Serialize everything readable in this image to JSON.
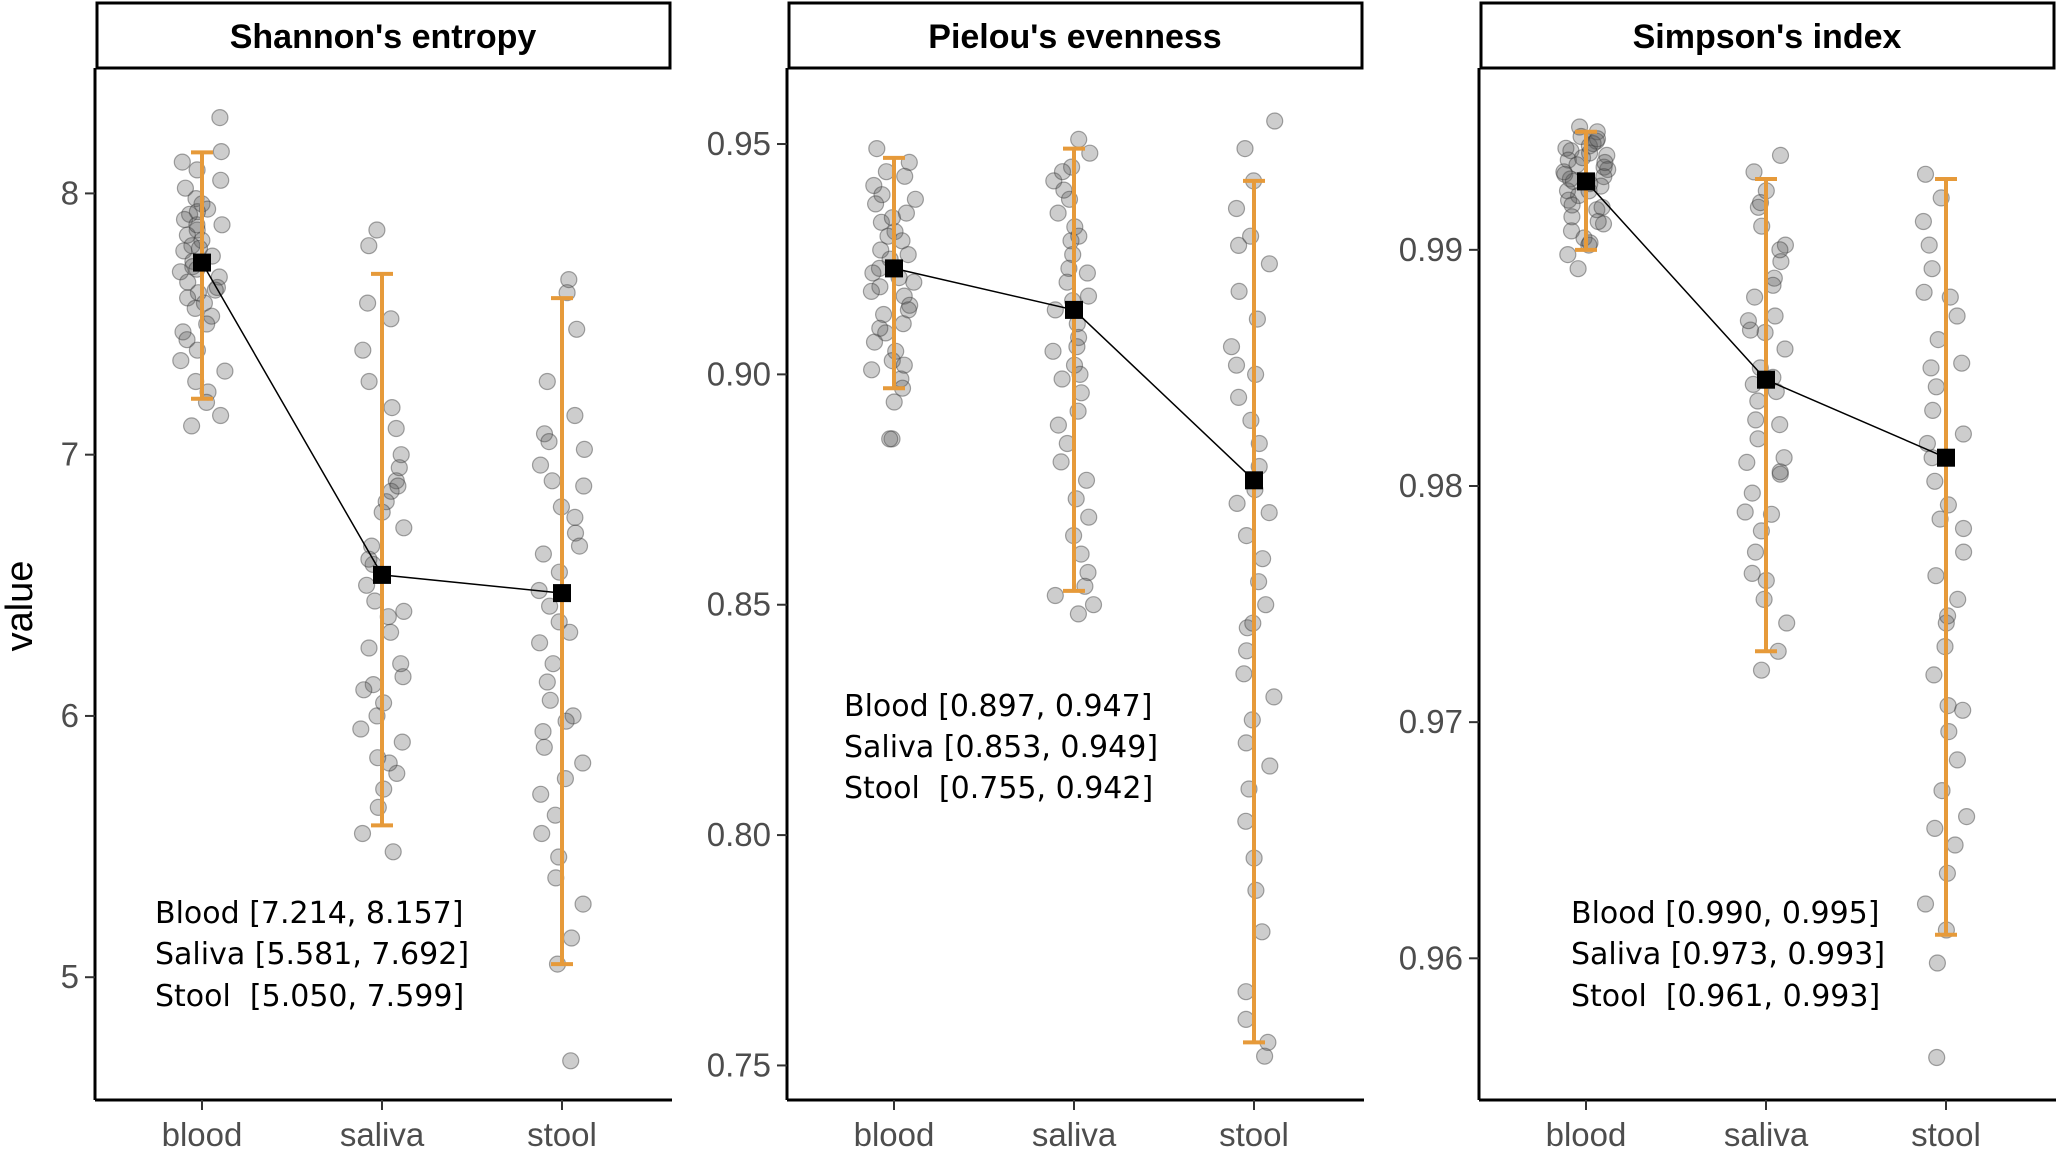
{
  "chart_data": [
    {
      "type": "scatter",
      "title": "Shannon's entropy",
      "ylabel": "value",
      "categories": [
        "blood",
        "saliva",
        "stool"
      ],
      "ylim": [
        4.53,
        8.48
      ],
      "yticks": [
        5,
        6,
        7,
        8
      ],
      "ytick_labels": [
        "5",
        "6",
        "7",
        "8"
      ],
      "mean": [
        7.735,
        6.54,
        6.47
      ],
      "interval_low": [
        7.214,
        5.581,
        5.05
      ],
      "interval_high": [
        8.157,
        7.692,
        7.599
      ],
      "interval_labels": [
        "Blood [7.214, 8.157]",
        "Saliva [5.581, 7.692]",
        "Stool  [5.050, 7.599]"
      ],
      "points": [
        [
          8.29,
          8.16,
          8.12,
          8.09,
          8.05,
          8.02,
          7.98,
          7.96,
          7.94,
          7.92,
          7.9,
          7.88,
          7.86,
          7.84,
          7.82,
          7.8,
          7.78,
          7.76,
          7.74,
          7.72,
          7.7,
          7.68,
          7.66,
          7.64,
          7.62,
          7.6,
          7.58,
          7.56,
          7.53,
          7.5,
          7.47,
          7.44,
          7.4,
          7.36,
          7.32,
          7.28,
          7.24,
          7.2,
          7.15,
          7.11,
          7.88,
          7.79,
          7.71,
          7.63,
          7.93
        ],
        [
          7.86,
          7.8,
          7.58,
          7.52,
          7.4,
          7.28,
          7.18,
          7.1,
          7.0,
          6.95,
          6.9,
          6.86,
          6.82,
          6.78,
          6.72,
          6.65,
          6.58,
          6.5,
          6.44,
          6.38,
          6.32,
          6.26,
          6.2,
          6.15,
          6.12,
          6.05,
          6.0,
          5.95,
          5.9,
          5.84,
          5.78,
          5.72,
          5.65,
          5.55,
          5.48,
          6.88,
          6.6,
          6.4,
          6.1,
          5.82
        ],
        [
          7.67,
          7.62,
          7.48,
          7.28,
          7.15,
          7.08,
          7.02,
          6.96,
          6.88,
          6.8,
          6.76,
          6.7,
          6.62,
          6.55,
          6.48,
          6.42,
          6.36,
          6.28,
          6.2,
          6.13,
          6.06,
          6.0,
          5.94,
          5.88,
          5.82,
          5.76,
          5.7,
          5.62,
          5.55,
          5.46,
          5.38,
          5.28,
          5.15,
          5.05,
          4.68,
          6.9,
          6.65,
          6.32,
          5.98,
          7.05
        ]
      ]
    },
    {
      "type": "scatter",
      "title": "Pielou's evenness",
      "ylabel": "",
      "categories": [
        "blood",
        "saliva",
        "stool"
      ],
      "ylim": [
        0.7425,
        0.9665
      ],
      "yticks": [
        0.75,
        0.8,
        0.85,
        0.9,
        0.95
      ],
      "ytick_labels": [
        "0.75",
        "0.80",
        "0.85",
        "0.90",
        "0.95"
      ],
      "mean": [
        0.923,
        0.914,
        0.877
      ],
      "interval_low": [
        0.897,
        0.853,
        0.755
      ],
      "interval_high": [
        0.947,
        0.949,
        0.942
      ],
      "interval_labels": [
        "Blood [0.897, 0.947]",
        "Saliva [0.853, 0.949]",
        "Stool  [0.755, 0.942]"
      ],
      "points": [
        [
          0.949,
          0.946,
          0.943,
          0.941,
          0.939,
          0.937,
          0.935,
          0.933,
          0.931,
          0.929,
          0.927,
          0.925,
          0.923,
          0.921,
          0.919,
          0.917,
          0.915,
          0.913,
          0.911,
          0.909,
          0.907,
          0.905,
          0.903,
          0.901,
          0.899,
          0.897,
          0.894,
          0.886,
          0.886,
          0.938,
          0.93,
          0.922,
          0.914,
          0.926,
          0.918,
          0.934,
          0.91,
          0.902,
          0.944,
          0.92
        ],
        [
          0.951,
          0.948,
          0.945,
          0.942,
          0.938,
          0.935,
          0.932,
          0.929,
          0.926,
          0.923,
          0.92,
          0.917,
          0.914,
          0.911,
          0.908,
          0.905,
          0.902,
          0.899,
          0.896,
          0.892,
          0.889,
          0.885,
          0.881,
          0.877,
          0.873,
          0.869,
          0.865,
          0.861,
          0.857,
          0.854,
          0.852,
          0.848,
          0.85,
          0.94,
          0.93,
          0.916,
          0.9,
          0.944,
          0.922,
          0.906
        ],
        [
          0.955,
          0.949,
          0.942,
          0.936,
          0.93,
          0.924,
          0.918,
          0.912,
          0.906,
          0.9,
          0.895,
          0.89,
          0.885,
          0.88,
          0.875,
          0.87,
          0.865,
          0.86,
          0.855,
          0.85,
          0.845,
          0.84,
          0.835,
          0.83,
          0.825,
          0.82,
          0.815,
          0.81,
          0.803,
          0.795,
          0.788,
          0.779,
          0.766,
          0.76,
          0.755,
          0.752,
          0.928,
          0.902,
          0.872,
          0.846
        ]
      ]
    },
    {
      "type": "scatter",
      "title": "Simpson's index",
      "ylabel": "",
      "categories": [
        "blood",
        "saliva",
        "stool"
      ],
      "ylim": [
        0.954,
        0.9977
      ],
      "yticks": [
        0.96,
        0.97,
        0.98,
        0.99
      ],
      "ytick_labels": [
        "0.96",
        "0.97",
        "0.98",
        "0.99"
      ],
      "mean": [
        0.9929,
        0.9845,
        0.9812
      ],
      "interval_low": [
        0.99,
        0.973,
        0.961
      ],
      "interval_high": [
        0.995,
        0.993,
        0.993
      ],
      "interval_labels": [
        "Blood [0.990, 0.995]",
        "Saliva [0.973, 0.993]",
        "Stool  [0.961, 0.993]"
      ],
      "points": [
        [
          0.9952,
          0.995,
          0.9948,
          0.9946,
          0.9944,
          0.9943,
          0.9942,
          0.994,
          0.9939,
          0.9938,
          0.9936,
          0.9935,
          0.9934,
          0.9932,
          0.9931,
          0.993,
          0.9928,
          0.9927,
          0.9925,
          0.9923,
          0.9921,
          0.9919,
          0.9917,
          0.9914,
          0.9911,
          0.9908,
          0.9905,
          0.9902,
          0.9898,
          0.9892,
          0.9945,
          0.9937,
          0.9929,
          0.9941,
          0.9933,
          0.9925,
          0.9947,
          0.9918,
          0.9912,
          0.9903
        ],
        [
          0.994,
          0.9933,
          0.9925,
          0.9918,
          0.991,
          0.9902,
          0.9895,
          0.9888,
          0.988,
          0.9872,
          0.9865,
          0.9858,
          0.985,
          0.9843,
          0.9836,
          0.9828,
          0.982,
          0.9812,
          0.9805,
          0.9797,
          0.9789,
          0.9781,
          0.9772,
          0.9763,
          0.9752,
          0.9742,
          0.973,
          0.9722,
          0.9885,
          0.9866,
          0.9846,
          0.9826,
          0.9806,
          0.9788,
          0.99,
          0.987,
          0.984,
          0.981,
          0.976,
          0.992
        ],
        [
          0.9932,
          0.9922,
          0.9912,
          0.9902,
          0.9892,
          0.9882,
          0.9872,
          0.9862,
          0.9852,
          0.9842,
          0.9832,
          0.9822,
          0.9812,
          0.9802,
          0.9792,
          0.9782,
          0.9772,
          0.9762,
          0.9752,
          0.9742,
          0.9732,
          0.972,
          0.9707,
          0.9696,
          0.9684,
          0.9671,
          0.966,
          0.9648,
          0.9636,
          0.9623,
          0.9612,
          0.9598,
          0.9558,
          0.988,
          0.985,
          0.9818,
          0.9786,
          0.9745,
          0.9705,
          0.9655
        ]
      ]
    }
  ]
}
